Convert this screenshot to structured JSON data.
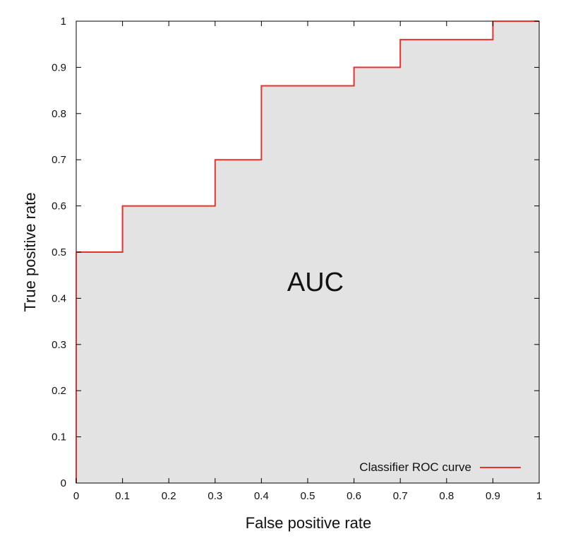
{
  "chart_data": {
    "type": "line",
    "title": "",
    "xlabel": "False positive rate",
    "ylabel": "True positive rate",
    "xlim": [
      0,
      1
    ],
    "ylim": [
      0,
      1
    ],
    "x_ticks": [
      "0",
      "0.1",
      "0.2",
      "0.3",
      "0.4",
      "0.5",
      "0.6",
      "0.7",
      "0.8",
      "0.9",
      "1"
    ],
    "y_ticks": [
      "0",
      "0.1",
      "0.2",
      "0.3",
      "0.4",
      "0.5",
      "0.6",
      "0.7",
      "0.8",
      "0.9",
      "1"
    ],
    "grid": false,
    "legend_position": "bottom-right",
    "annotation": "AUC",
    "area_fill_color": "#e3e3e3",
    "series": [
      {
        "name": "Classifier ROC curve",
        "color": "#e8322c",
        "step": true,
        "x": [
          0,
          0,
          0.1,
          0.1,
          0.3,
          0.3,
          0.4,
          0.4,
          0.6,
          0.6,
          0.7,
          0.7,
          0.9,
          0.9,
          1
        ],
        "y": [
          0,
          0.5,
          0.5,
          0.6,
          0.6,
          0.7,
          0.7,
          0.86,
          0.86,
          0.9,
          0.9,
          0.96,
          0.96,
          1,
          1
        ]
      }
    ]
  }
}
